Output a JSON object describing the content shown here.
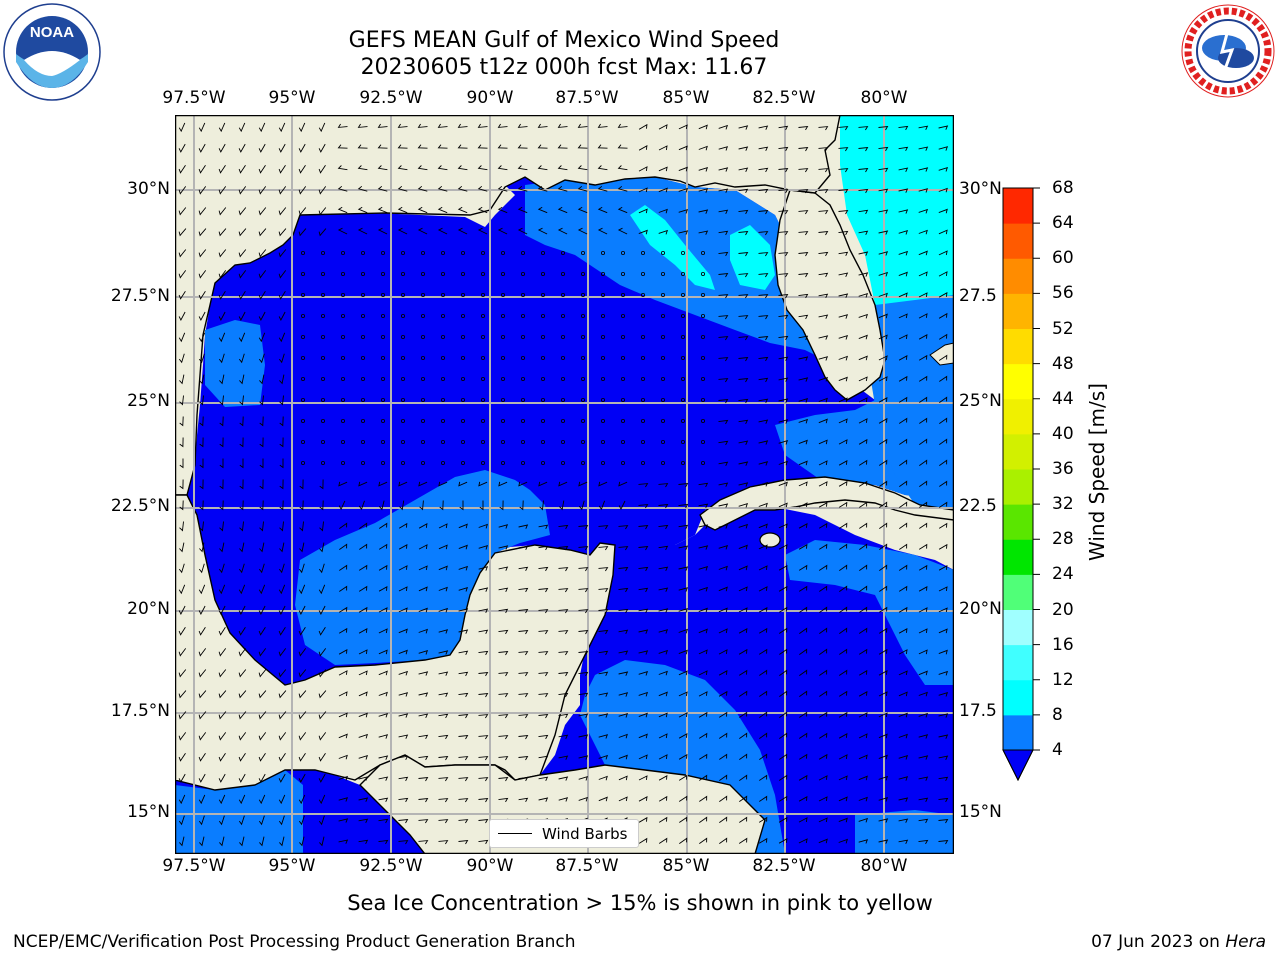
{
  "header": {
    "title_line1": "GEFS MEAN Gulf of Mexico Wind Speed",
    "title_line2": "20230605 t12z 000h fcst   Max: 11.67"
  },
  "logos": {
    "noaa": {
      "text": "NOAA",
      "ring_text": "NATIONAL OCEANIC AND ATMOSPHERIC ADMINISTRATION · U.S. DEPARTMENT OF COMMERCE"
    },
    "nws": {
      "ring_text": "NATIONAL WEATHER SERVICE"
    }
  },
  "map": {
    "lon_labels": [
      "97.5°W",
      "95°W",
      "92.5°W",
      "90°W",
      "87.5°W",
      "85°W",
      "82.5°W",
      "80°W"
    ],
    "lat_labels_left": [
      "30°N",
      "27.5°N",
      "25°N",
      "22.5°N",
      "20°N",
      "17.5°N",
      "15°N"
    ],
    "lat_labels_right": [
      "30°N",
      "27.5",
      "25°N",
      "22.5",
      "20°N",
      "17.5",
      "15°N"
    ],
    "legend_label": "Wind Barbs",
    "colors": {
      "land": "#eeeedc",
      "speed_0_4": "#0000f5",
      "speed_4_8": "#0a7dff",
      "speed_8_12": "#00ffff",
      "grid": "#b4b4b4"
    }
  },
  "colorbar": {
    "label": "Wind Speed [m/s]",
    "ticks": [
      "4",
      "8",
      "12",
      "16",
      "20",
      "24",
      "28",
      "32",
      "36",
      "40",
      "44",
      "48",
      "52",
      "56",
      "60",
      "64",
      "68"
    ],
    "colors": [
      "#0a7dff",
      "#00ffff",
      "#40ffff",
      "#a0ffff",
      "#50ff78",
      "#00e600",
      "#5ae600",
      "#aaf000",
      "#d2f000",
      "#f0f000",
      "#ffff00",
      "#ffdc00",
      "#ffb400",
      "#ff8c00",
      "#ff5a00",
      "#ff2800",
      "#ff0000"
    ],
    "under_color": "#0000f5"
  },
  "footer": {
    "note": "Sea Ice Concentration > 15% is shown in pink to yellow",
    "left": "NCEP/EMC/Verification Post Processing Product Generation Branch",
    "right_date": "07 Jun 2023 on ",
    "right_host": "Hera"
  }
}
